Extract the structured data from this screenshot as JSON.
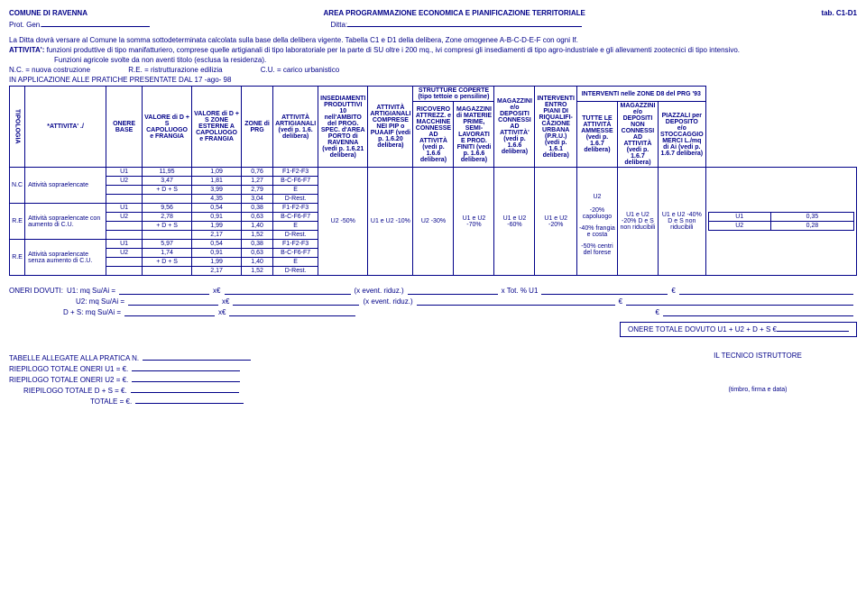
{
  "header": {
    "comune": "COMUNE DI RAVENNA",
    "area": "AREA PROGRAMMAZIONE ECONOMICA E PIANIFICAZIONE TERRITORIALE",
    "tab": "tab. C1-D1",
    "prot": "Prot. Gen.",
    "ditta": "Ditta:"
  },
  "intro": {
    "l1": "La Ditta dovrà versare al Comune la somma sottodeterminata calcolata sulla base della delibera vigente. Tabella C1 e D1 della delibera, Zone omogenee A-B-C-D-E-F con ogni If.",
    "l2a": "ATTIVITA':",
    "l2b": " funzioni produttive di tipo manifatturiero, comprese quelle artigianali di tipo laboratoriale per la parte di SU oltre i 200 mq., ivi compresi gli insediamenti di tipo agro-industriale e gli allevamenti zootecnici di tipo intensivo.",
    "l3": "Funzioni agricole svolte da non aventi titolo (esclusa la residenza).",
    "l4a": "N.C. = nuova costruzione",
    "l4b": "R.E. = ristrutturazione edilizia",
    "l4c": "C.U. = carico urbanistico",
    "apptitle": "IN APPLICAZIONE ALLE PRATICHE PRESENTATE DAL 17 -ago- 98"
  },
  "columns": {
    "tipologia": "TIPOLOGIA",
    "attivita": "*ATTIVITA' ./",
    "onere": "ONERE BASE",
    "valore1": "VALORE di D + S CAPOLUOGO e FRANGIA",
    "valore2": "VALORE di D + S ZONE ESTERNE A CAPOLUOGO e FRANGIA",
    "zone": "ZONE di PRG",
    "col7": "ATTIVITÀ ARTIGIANALI (vedi p. 1.6. delibera)",
    "col8": "INSEDIAMENTI PRODUTTIVI 10 nell'AMBITO del PROG. SPEC. d'AREA PORTO di RAVENNA (vedi p. 1.6.21 delibera)",
    "col9": "ATTIVITÀ ARTIGIANALI COMPRESE NEI PIP o PUAAIF (vedi p. 1.6.20 delibera)",
    "col10h": "STRUTTURE COPERTE (tipo tettoie o pensiline)",
    "col10a": "RICOVERO ATTREZZ. e MACCHINE CONNESSE AD ATTIVITÀ (vedi p. 1.6.6 delibera)",
    "col10b": "MAGAZZINI di MATERIE PRIME, SEMI-LAVORATI E PROD. FINITI (vedi p. 1.6.6 delibera)",
    "col11": "MAGAZZINI e/o DEPOSITI CONNESSI AD ATTIVITÀ' (vedi p. 1.6.6 delibera)",
    "col12": "INTERVENTI ENTRO PIANI DI RIQUALIFI-CAZIONE URBANA (P.R.U.) (vedi p. 1.6.1 delibera)",
    "col13h": "INTERVENTI nelle ZONE D8 del PRG '93",
    "col13a": "TUTTE LE ATTIVITÀ AMMESSE (vedi p. 1.6.7 delibera)",
    "col13b": "MAGAZZINI e/o DEPOSITI NON CONNESSI AD ATTIVITÀ (vedi p. 1.6.7 delibera)",
    "col13c": "PIAZZALI per DEPOSITO e/o STOCCAGGIO MERCI L./mq di Ai (vedi p. 1.6.7 delibera)"
  },
  "groups": [
    {
      "tag": "N.C",
      "label": "Attività sopraelencate",
      "rows": [
        {
          "u": "U1",
          "onere": "11,95",
          "v1": "1,09",
          "v2": "0,76",
          "zone": "F1-F2-F3"
        },
        {
          "u": "U2",
          "onere": "3,47",
          "v1": "1,81",
          "v2": "1,27",
          "zone": "B-C-F6-F7"
        },
        {
          "u": "",
          "onere": "+ D + S",
          "v1": "3,99",
          "v2": "2,79",
          "zone": "E"
        },
        {
          "u": "",
          "onere": "",
          "v1": "4,35",
          "v2": "3,04",
          "zone": "D-Rest."
        }
      ]
    },
    {
      "tag": "R.E",
      "label": "Attività sopraelencate con aumento di C.U.",
      "rows": [
        {
          "u": "U1",
          "onere": "9,56",
          "v1": "0,54",
          "v2": "0,38",
          "zone": "F1-F2-F3"
        },
        {
          "u": "U2",
          "onere": "2,78",
          "v1": "0,91",
          "v2": "0,63",
          "zone": "B-C-F6-F7"
        },
        {
          "u": "",
          "onere": "+ D + S",
          "v1": "1,99",
          "v2": "1,40",
          "zone": "E"
        },
        {
          "u": "",
          "onere": "",
          "v1": "2,17",
          "v2": "1,52",
          "zone": "D-Rest."
        }
      ]
    },
    {
      "tag": "R.E",
      "label": "Attività sopraelencate senza aumento di C.U.",
      "rows": [
        {
          "u": "U1",
          "onere": "5,97",
          "v1": "0,54",
          "v2": "0,38",
          "zone": "F1-F2-F3"
        },
        {
          "u": "U2",
          "onere": "1,74",
          "v1": "0,91",
          "v2": "0,63",
          "zone": "B-C-F6-F7"
        },
        {
          "u": "",
          "onere": "+ D + S",
          "v1": "1,99",
          "v2": "1,40",
          "zone": "E"
        },
        {
          "u": "",
          "onere": "",
          "v1": "2,17",
          "v2": "1,52",
          "zone": "D-Rest."
        }
      ]
    }
  ],
  "pct": {
    "c7": "U2 -50%",
    "c8": "U1 e U2 -10%",
    "c9": "U2 -30%",
    "c10a": "U1 e U2 -70%",
    "c10b": "U1 e U2 -60%",
    "c11": "U1 e U2 -20%",
    "c12a": "U2",
    "c12b": "-20% capoluogo",
    "c12c": "-40% frangia e costa",
    "c12d": "-50% centri del forese",
    "c13a": "U1 e U2 -20% D e S non riducibili",
    "c13b": "U1 e U2 -40% D e S non riducibili",
    "c13c1": "U1",
    "c13c1v": "0,35",
    "c13c2": "U2",
    "c13c2v": "0,28"
  },
  "oneri": {
    "title": "ONERI DOVUTI:",
    "r1": "U1: mq Su/Ai =",
    "r2": "U2: mq Su/Ai =",
    "r3": "D + S: mq Su/Ai =",
    "x": "x€",
    "ev": "(x event. riduz.)",
    "tot": "x Tot. % U1",
    "eur": "€",
    "totale": "ONERE TOTALE DOVUTO U1 + U2 + D + S €"
  },
  "bottom": {
    "t1": "TABELLE ALLEGATE ALLA PRATICA N.",
    "t2": "RIEPILOGO TOTALE ONERI U1 = €.",
    "t3": "RIEPILOGO TOTALE ONERI U2 = €.",
    "t4": "RIEPILOGO TOTALE D + S = €.",
    "t5": "TOTALE = €.",
    "tecnico": "IL TECNICO ISTRUTTORE",
    "timbro": "(timbro, firma e data)"
  }
}
